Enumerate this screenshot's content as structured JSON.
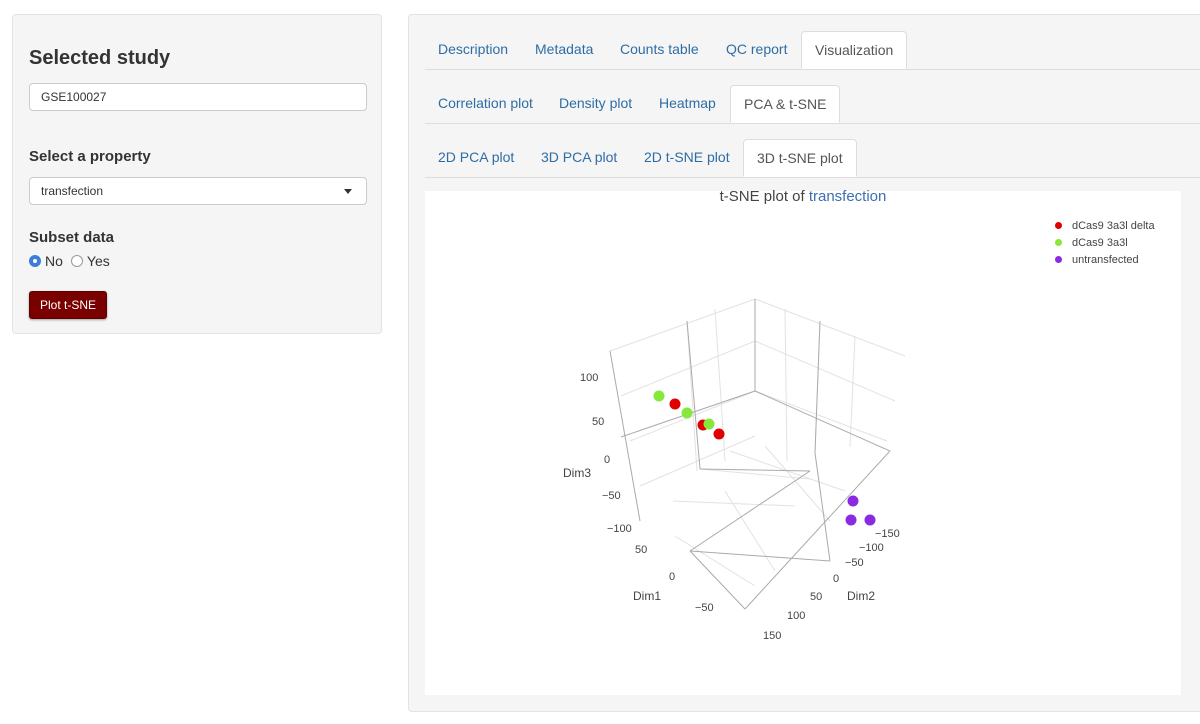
{
  "sidebar": {
    "study_title": "Selected study",
    "study_value": "GSE100027",
    "property_label": "Select a property",
    "property_value": "transfection",
    "subset_label": "Subset data",
    "radio_no": "No",
    "radio_yes": "Yes",
    "radio_selected": "No",
    "plot_button": "Plot t-SNE"
  },
  "tabs": {
    "level1": [
      "Description",
      "Metadata",
      "Counts table",
      "QC report",
      "Visualization"
    ],
    "level1_active": "Visualization",
    "level2": [
      "Correlation plot",
      "Density plot",
      "Heatmap",
      "PCA & t-SNE"
    ],
    "level2_active": "PCA & t-SNE",
    "level3": [
      "2D PCA plot",
      "3D PCA plot",
      "2D t-SNE plot",
      "3D t-SNE plot"
    ],
    "level3_active": "3D t-SNE plot"
  },
  "colors": {
    "accent_button": "#7a0000",
    "link": "#2e6da4",
    "radio_checked": "#3b7dd8"
  },
  "chart_data": {
    "type": "scatter",
    "projection": "3d",
    "title_prefix": "t-SNE plot of ",
    "title_highlight": "transfection",
    "axes": {
      "x": {
        "label": "Dim1",
        "ticks": [
          "50",
          "0",
          "−50"
        ]
      },
      "y": {
        "label": "Dim2",
        "ticks": [
          "−150",
          "−100",
          "−50",
          "0",
          "50",
          "100",
          "150"
        ]
      },
      "z": {
        "label": "Dim3",
        "ticks": [
          "100",
          "50",
          "0",
          "−50",
          "−100"
        ]
      }
    },
    "legend_position": "top-right",
    "series": [
      {
        "name": "dCas9 3a3l delta",
        "color": "#e00000",
        "count": 4
      },
      {
        "name": "dCas9 3a3l",
        "color": "#86e83a",
        "count": 3
      },
      {
        "name": "untransfected",
        "color": "#8a2be2",
        "count": 3
      }
    ]
  }
}
